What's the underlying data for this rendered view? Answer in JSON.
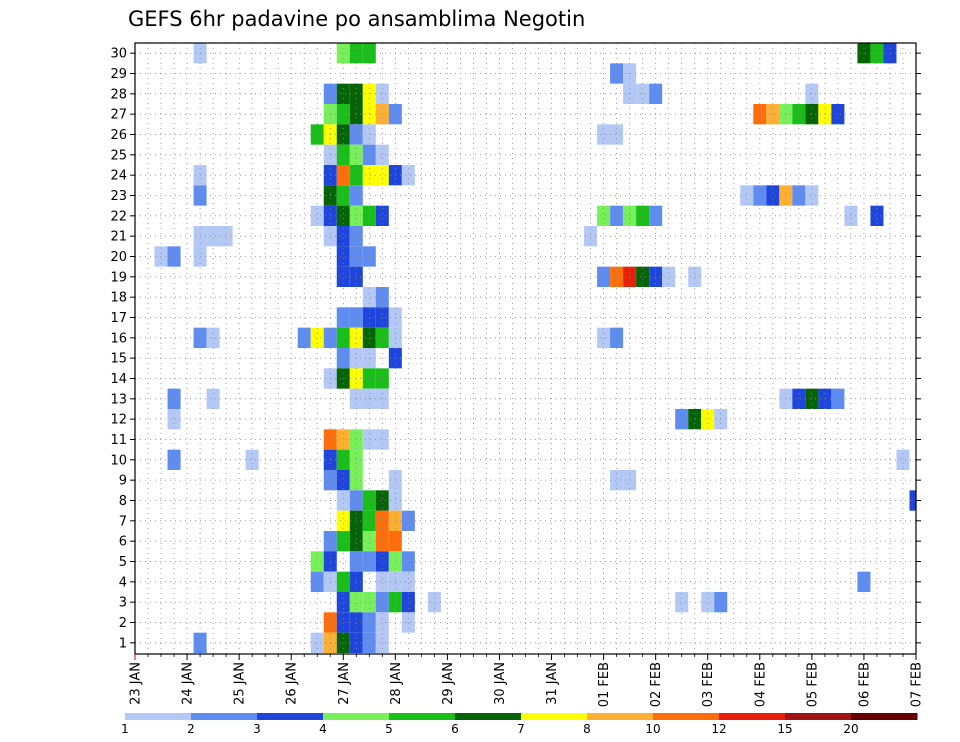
{
  "chart_data": {
    "type": "heatmap",
    "title": "GEFS 6hr padavine po ansamblima Negotin",
    "xlabel": "",
    "ylabel": "",
    "grid": true,
    "x_axis": {
      "unit": "6h step from 23 JAN 00Z",
      "range": [
        0,
        60
      ],
      "tick_labels": [
        "23 JAN",
        "24 JAN",
        "25 JAN",
        "26 JAN",
        "27 JAN",
        "28 JAN",
        "29 JAN",
        "30 JAN",
        "31 JAN",
        "01 FEB",
        "02 FEB",
        "03 FEB",
        "04 FEB",
        "05 FEB",
        "06 FEB",
        "07 FEB"
      ]
    },
    "y_axis": {
      "range": [
        1,
        30
      ],
      "tick_labels": [
        "1",
        "2",
        "3",
        "4",
        "5",
        "6",
        "7",
        "8",
        "9",
        "10",
        "11",
        "12",
        "13",
        "14",
        "15",
        "16",
        "17",
        "18",
        "19",
        "20",
        "21",
        "22",
        "23",
        "24",
        "25",
        "26",
        "27",
        "28",
        "29",
        "30"
      ]
    },
    "colorbar": {
      "colors": [
        "#b4c8f5",
        "#5f8cf0",
        "#1e46dc",
        "#78f05a",
        "#19be19",
        "#056405",
        "#ffff00",
        "#ffaf32",
        "#ff6e0a",
        "#e61e0a",
        "#a01414",
        "#640000"
      ],
      "tick_labels": [
        "1",
        "2",
        "3",
        "4",
        "5",
        "6",
        "7",
        "8",
        "10",
        "12",
        "15",
        "20"
      ]
    },
    "cells": [
      {
        "m": 30,
        "x": 5,
        "c": 0
      },
      {
        "m": 30,
        "x": 16,
        "c": 3
      },
      {
        "m": 30,
        "x": 17,
        "c": 4
      },
      {
        "m": 30,
        "x": 18,
        "c": 4
      },
      {
        "m": 30,
        "x": 56,
        "c": 5
      },
      {
        "m": 30,
        "x": 57,
        "c": 4
      },
      {
        "m": 30,
        "x": 58,
        "c": 2
      },
      {
        "m": 29,
        "x": 37,
        "c": 1
      },
      {
        "m": 29,
        "x": 38,
        "c": 0
      },
      {
        "m": 28,
        "x": 15,
        "c": 1
      },
      {
        "m": 28,
        "x": 16,
        "c": 5
      },
      {
        "m": 28,
        "x": 17,
        "c": 5
      },
      {
        "m": 28,
        "x": 18,
        "c": 6
      },
      {
        "m": 28,
        "x": 19,
        "c": 0
      },
      {
        "m": 28,
        "x": 38,
        "c": 0
      },
      {
        "m": 28,
        "x": 39,
        "c": 0
      },
      {
        "m": 28,
        "x": 40,
        "c": 1
      },
      {
        "m": 28,
        "x": 52,
        "c": 0
      },
      {
        "m": 27,
        "x": 15,
        "c": 3
      },
      {
        "m": 27,
        "x": 16,
        "c": 4
      },
      {
        "m": 27,
        "x": 17,
        "c": 5
      },
      {
        "m": 27,
        "x": 18,
        "c": 6
      },
      {
        "m": 27,
        "x": 19,
        "c": 7
      },
      {
        "m": 27,
        "x": 20,
        "c": 1
      },
      {
        "m": 27,
        "x": 48,
        "c": 8
      },
      {
        "m": 27,
        "x": 49,
        "c": 7
      },
      {
        "m": 27,
        "x": 50,
        "c": 3
      },
      {
        "m": 27,
        "x": 51,
        "c": 4
      },
      {
        "m": 27,
        "x": 52,
        "c": 5
      },
      {
        "m": 27,
        "x": 53,
        "c": 6
      },
      {
        "m": 27,
        "x": 54,
        "c": 2
      },
      {
        "m": 26,
        "x": 14,
        "c": 4
      },
      {
        "m": 26,
        "x": 15,
        "c": 6
      },
      {
        "m": 26,
        "x": 16,
        "c": 5
      },
      {
        "m": 26,
        "x": 17,
        "c": 1
      },
      {
        "m": 26,
        "x": 18,
        "c": 0
      },
      {
        "m": 26,
        "x": 36,
        "c": 0
      },
      {
        "m": 26,
        "x": 37,
        "c": 0
      },
      {
        "m": 25,
        "x": 15,
        "c": 0
      },
      {
        "m": 25,
        "x": 16,
        "c": 4
      },
      {
        "m": 25,
        "x": 17,
        "c": 3
      },
      {
        "m": 25,
        "x": 18,
        "c": 1
      },
      {
        "m": 25,
        "x": 19,
        "c": 0
      },
      {
        "m": 24,
        "x": 5,
        "c": 0
      },
      {
        "m": 24,
        "x": 15,
        "c": 2
      },
      {
        "m": 24,
        "x": 16,
        "c": 8
      },
      {
        "m": 24,
        "x": 17,
        "c": 4
      },
      {
        "m": 24,
        "x": 18,
        "c": 6
      },
      {
        "m": 24,
        "x": 19,
        "c": 6
      },
      {
        "m": 24,
        "x": 20,
        "c": 2
      },
      {
        "m": 24,
        "x": 21,
        "c": 0
      },
      {
        "m": 23,
        "x": 5,
        "c": 1
      },
      {
        "m": 23,
        "x": 15,
        "c": 5
      },
      {
        "m": 23,
        "x": 16,
        "c": 4
      },
      {
        "m": 23,
        "x": 17,
        "c": 1
      },
      {
        "m": 23,
        "x": 47,
        "c": 0
      },
      {
        "m": 23,
        "x": 48,
        "c": 1
      },
      {
        "m": 23,
        "x": 49,
        "c": 2
      },
      {
        "m": 23,
        "x": 50,
        "c": 7
      },
      {
        "m": 23,
        "x": 51,
        "c": 1
      },
      {
        "m": 23,
        "x": 52,
        "c": 0
      },
      {
        "m": 22,
        "x": 14,
        "c": 0
      },
      {
        "m": 22,
        "x": 15,
        "c": 2
      },
      {
        "m": 22,
        "x": 16,
        "c": 5
      },
      {
        "m": 22,
        "x": 17,
        "c": 3
      },
      {
        "m": 22,
        "x": 18,
        "c": 4
      },
      {
        "m": 22,
        "x": 19,
        "c": 2
      },
      {
        "m": 22,
        "x": 36,
        "c": 3
      },
      {
        "m": 22,
        "x": 37,
        "c": 1
      },
      {
        "m": 22,
        "x": 38,
        "c": 3
      },
      {
        "m": 22,
        "x": 39,
        "c": 4
      },
      {
        "m": 22,
        "x": 40,
        "c": 1
      },
      {
        "m": 22,
        "x": 55,
        "c": 0
      },
      {
        "m": 22,
        "x": 57,
        "c": 2
      },
      {
        "m": 21,
        "x": 5,
        "c": 0
      },
      {
        "m": 21,
        "x": 6,
        "c": 0
      },
      {
        "m": 21,
        "x": 7,
        "c": 0
      },
      {
        "m": 21,
        "x": 15,
        "c": 0
      },
      {
        "m": 21,
        "x": 16,
        "c": 2
      },
      {
        "m": 21,
        "x": 17,
        "c": 1
      },
      {
        "m": 21,
        "x": 35,
        "c": 0
      },
      {
        "m": 20,
        "x": 2,
        "c": 0
      },
      {
        "m": 20,
        "x": 3,
        "c": 1
      },
      {
        "m": 20,
        "x": 5,
        "c": 0
      },
      {
        "m": 20,
        "x": 16,
        "c": 2
      },
      {
        "m": 20,
        "x": 17,
        "c": 1
      },
      {
        "m": 20,
        "x": 18,
        "c": 1
      },
      {
        "m": 19,
        "x": 16,
        "c": 2
      },
      {
        "m": 19,
        "x": 17,
        "c": 2
      },
      {
        "m": 19,
        "x": 36,
        "c": 1
      },
      {
        "m": 19,
        "x": 37,
        "c": 8
      },
      {
        "m": 19,
        "x": 38,
        "c": 9
      },
      {
        "m": 19,
        "x": 39,
        "c": 5
      },
      {
        "m": 19,
        "x": 40,
        "c": 2
      },
      {
        "m": 19,
        "x": 41,
        "c": 0
      },
      {
        "m": 19,
        "x": 43,
        "c": 0
      },
      {
        "m": 18,
        "x": 18,
        "c": 0
      },
      {
        "m": 18,
        "x": 19,
        "c": 1
      },
      {
        "m": 17,
        "x": 16,
        "c": 1
      },
      {
        "m": 17,
        "x": 17,
        "c": 1
      },
      {
        "m": 17,
        "x": 18,
        "c": 2
      },
      {
        "m": 17,
        "x": 19,
        "c": 2
      },
      {
        "m": 17,
        "x": 20,
        "c": 0
      },
      {
        "m": 16,
        "x": 5,
        "c": 1
      },
      {
        "m": 16,
        "x": 6,
        "c": 0
      },
      {
        "m": 16,
        "x": 13,
        "c": 1
      },
      {
        "m": 16,
        "x": 14,
        "c": 6
      },
      {
        "m": 16,
        "x": 15,
        "c": 1
      },
      {
        "m": 16,
        "x": 16,
        "c": 4
      },
      {
        "m": 16,
        "x": 17,
        "c": 6
      },
      {
        "m": 16,
        "x": 18,
        "c": 5
      },
      {
        "m": 16,
        "x": 19,
        "c": 4
      },
      {
        "m": 16,
        "x": 20,
        "c": 0
      },
      {
        "m": 16,
        "x": 36,
        "c": 0
      },
      {
        "m": 16,
        "x": 37,
        "c": 1
      },
      {
        "m": 15,
        "x": 16,
        "c": 1
      },
      {
        "m": 15,
        "x": 17,
        "c": 0
      },
      {
        "m": 15,
        "x": 18,
        "c": 0
      },
      {
        "m": 15,
        "x": 20,
        "c": 2
      },
      {
        "m": 14,
        "x": 15,
        "c": 0
      },
      {
        "m": 14,
        "x": 16,
        "c": 5
      },
      {
        "m": 14,
        "x": 17,
        "c": 6
      },
      {
        "m": 14,
        "x": 18,
        "c": 4
      },
      {
        "m": 14,
        "x": 19,
        "c": 4
      },
      {
        "m": 13,
        "x": 3,
        "c": 1
      },
      {
        "m": 13,
        "x": 6,
        "c": 0
      },
      {
        "m": 13,
        "x": 17,
        "c": 0
      },
      {
        "m": 13,
        "x": 18,
        "c": 0
      },
      {
        "m": 13,
        "x": 19,
        "c": 0
      },
      {
        "m": 13,
        "x": 50,
        "c": 0
      },
      {
        "m": 13,
        "x": 51,
        "c": 2
      },
      {
        "m": 13,
        "x": 52,
        "c": 5
      },
      {
        "m": 13,
        "x": 53,
        "c": 2
      },
      {
        "m": 13,
        "x": 54,
        "c": 1
      },
      {
        "m": 12,
        "x": 3,
        "c": 0
      },
      {
        "m": 12,
        "x": 42,
        "c": 1
      },
      {
        "m": 12,
        "x": 43,
        "c": 5
      },
      {
        "m": 12,
        "x": 44,
        "c": 6
      },
      {
        "m": 12,
        "x": 45,
        "c": 0
      },
      {
        "m": 11,
        "x": 15,
        "c": 8
      },
      {
        "m": 11,
        "x": 16,
        "c": 7
      },
      {
        "m": 11,
        "x": 17,
        "c": 3
      },
      {
        "m": 11,
        "x": 18,
        "c": 0
      },
      {
        "m": 11,
        "x": 19,
        "c": 0
      },
      {
        "m": 10,
        "x": 3,
        "c": 1
      },
      {
        "m": 10,
        "x": 9,
        "c": 0
      },
      {
        "m": 10,
        "x": 15,
        "c": 2
      },
      {
        "m": 10,
        "x": 16,
        "c": 4
      },
      {
        "m": 10,
        "x": 17,
        "c": 3
      },
      {
        "m": 10,
        "x": 59,
        "c": 0
      },
      {
        "m": 9,
        "x": 15,
        "c": 1
      },
      {
        "m": 9,
        "x": 16,
        "c": 2
      },
      {
        "m": 9,
        "x": 17,
        "c": 3
      },
      {
        "m": 9,
        "x": 20,
        "c": 0
      },
      {
        "m": 9,
        "x": 37,
        "c": 0
      },
      {
        "m": 9,
        "x": 38,
        "c": 0
      },
      {
        "m": 8,
        "x": 16,
        "c": 0
      },
      {
        "m": 8,
        "x": 17,
        "c": 1
      },
      {
        "m": 8,
        "x": 18,
        "c": 4
      },
      {
        "m": 8,
        "x": 19,
        "c": 5
      },
      {
        "m": 8,
        "x": 20,
        "c": 0
      },
      {
        "m": 8,
        "x": 60,
        "c": 2
      },
      {
        "m": 7,
        "x": 16,
        "c": 6
      },
      {
        "m": 7,
        "x": 17,
        "c": 5
      },
      {
        "m": 7,
        "x": 18,
        "c": 4
      },
      {
        "m": 7,
        "x": 19,
        "c": 8
      },
      {
        "m": 7,
        "x": 20,
        "c": 7
      },
      {
        "m": 7,
        "x": 21,
        "c": 1
      },
      {
        "m": 6,
        "x": 15,
        "c": 1
      },
      {
        "m": 6,
        "x": 16,
        "c": 4
      },
      {
        "m": 6,
        "x": 17,
        "c": 5
      },
      {
        "m": 6,
        "x": 18,
        "c": 3
      },
      {
        "m": 6,
        "x": 19,
        "c": 8
      },
      {
        "m": 6,
        "x": 20,
        "c": 8
      },
      {
        "m": 5,
        "x": 14,
        "c": 3
      },
      {
        "m": 5,
        "x": 15,
        "c": 2
      },
      {
        "m": 5,
        "x": 17,
        "c": 1
      },
      {
        "m": 5,
        "x": 18,
        "c": 1
      },
      {
        "m": 5,
        "x": 19,
        "c": 2
      },
      {
        "m": 5,
        "x": 20,
        "c": 3
      },
      {
        "m": 5,
        "x": 21,
        "c": 1
      },
      {
        "m": 4,
        "x": 14,
        "c": 1
      },
      {
        "m": 4,
        "x": 15,
        "c": 0
      },
      {
        "m": 4,
        "x": 16,
        "c": 4
      },
      {
        "m": 4,
        "x": 17,
        "c": 2
      },
      {
        "m": 4,
        "x": 19,
        "c": 0
      },
      {
        "m": 4,
        "x": 20,
        "c": 0
      },
      {
        "m": 4,
        "x": 21,
        "c": 0
      },
      {
        "m": 4,
        "x": 56,
        "c": 1
      },
      {
        "m": 3,
        "x": 16,
        "c": 2
      },
      {
        "m": 3,
        "x": 17,
        "c": 3
      },
      {
        "m": 3,
        "x": 18,
        "c": 3
      },
      {
        "m": 3,
        "x": 19,
        "c": 1
      },
      {
        "m": 3,
        "x": 20,
        "c": 4
      },
      {
        "m": 3,
        "x": 21,
        "c": 2
      },
      {
        "m": 3,
        "x": 23,
        "c": 0
      },
      {
        "m": 3,
        "x": 42,
        "c": 0
      },
      {
        "m": 3,
        "x": 44,
        "c": 0
      },
      {
        "m": 3,
        "x": 45,
        "c": 1
      },
      {
        "m": 2,
        "x": 15,
        "c": 8
      },
      {
        "m": 2,
        "x": 16,
        "c": 2
      },
      {
        "m": 2,
        "x": 17,
        "c": 2
      },
      {
        "m": 2,
        "x": 18,
        "c": 1
      },
      {
        "m": 2,
        "x": 19,
        "c": 0
      },
      {
        "m": 2,
        "x": 21,
        "c": 0
      },
      {
        "m": 1,
        "x": 5,
        "c": 1
      },
      {
        "m": 1,
        "x": 14,
        "c": 0
      },
      {
        "m": 1,
        "x": 15,
        "c": 7
      },
      {
        "m": 1,
        "x": 16,
        "c": 5
      },
      {
        "m": 1,
        "x": 17,
        "c": 2
      },
      {
        "m": 1,
        "x": 18,
        "c": 1
      },
      {
        "m": 1,
        "x": 19,
        "c": 0
      }
    ]
  }
}
